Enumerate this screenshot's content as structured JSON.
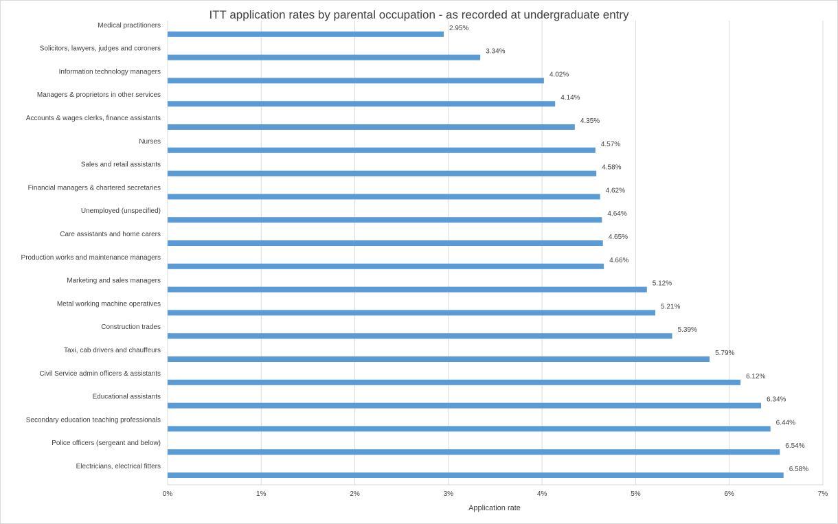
{
  "chart_data": {
    "type": "bar",
    "orientation": "horizontal",
    "title": "ITT application rates by parental occupation - as recorded at undergraduate entry",
    "xlabel": "Application rate",
    "ylabel": "",
    "xlim": [
      0,
      7
    ],
    "x_ticks": [
      "0%",
      "1%",
      "2%",
      "3%",
      "4%",
      "5%",
      "6%",
      "7%"
    ],
    "grid": "vertical",
    "legend": "none",
    "bar_color": "#5b9bd5",
    "categories": [
      "Medical practitioners",
      "Solicitors, lawyers, judges and coroners",
      "Information technology managers",
      "Managers & proprietors in other services",
      "Accounts & wages clerks, finance assistants",
      "Nurses",
      "Sales and retail assistants",
      "Financial managers & chartered secretaries",
      "Unemployed (unspecified)",
      "Care assistants and home carers",
      "Production works and maintenance managers",
      "Marketing and sales managers",
      "Metal working machine operatives",
      "Construction trades",
      "Taxi, cab drivers and chauffeurs",
      "Civil Service admin officers & assistants",
      "Educational assistants",
      "Secondary education teaching professionals",
      "Police officers (sergeant and below)",
      "Electricians, electrical fitters"
    ],
    "values": [
      2.95,
      3.34,
      4.02,
      4.14,
      4.35,
      4.57,
      4.58,
      4.62,
      4.64,
      4.65,
      4.66,
      5.12,
      5.21,
      5.39,
      5.79,
      6.12,
      6.34,
      6.44,
      6.54,
      6.58
    ],
    "data_labels": [
      "2.95%",
      "3.34%",
      "4.02%",
      "4.14%",
      "4.35%",
      "4.57%",
      "4.58%",
      "4.62%",
      "4.64%",
      "4.65%",
      "4.66%",
      "5.12%",
      "5.21%",
      "5.39%",
      "5.79%",
      "6.12%",
      "6.34%",
      "6.44%",
      "6.54%",
      "6.58%"
    ]
  }
}
